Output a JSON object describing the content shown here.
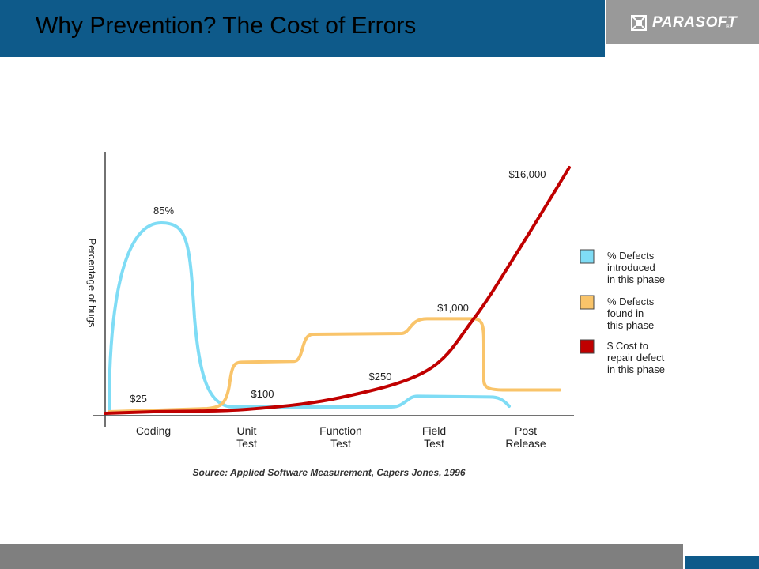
{
  "slide": {
    "title": "Why Prevention? The Cost of Errors",
    "logo": "PARASOFT",
    "logo_mark": "®",
    "colors": {
      "title_bar": "#0e5a8a",
      "logo_box": "#999999",
      "footer": "#7f7f7f"
    }
  },
  "chart_data": {
    "type": "line",
    "ylabel": "Percentage of bugs",
    "categories": [
      "Coding",
      "Unit\nTest",
      "Function\nTest",
      "Field\nTest",
      "Post\nRelease"
    ],
    "series": [
      {
        "name": "% Defects introduced in this phase",
        "color": "#7fdcf5",
        "values": [
          85,
          0.5,
          0.3,
          7,
          0
        ],
        "labels": [
          "85%"
        ]
      },
      {
        "name": "% Defects found in this phase",
        "color": "#f9c46a",
        "values": [
          0.5,
          16,
          25,
          30,
          7
        ]
      },
      {
        "name": "$ Cost to repair defect in this phase",
        "color": "#c00000",
        "values": [
          25,
          100,
          250,
          1000,
          16000
        ],
        "labels": [
          "$25",
          "$100",
          "$250",
          "$1,000",
          "$16,000"
        ]
      }
    ],
    "legend": [
      "% Defects\nintroduced\nin this phase",
      "% Defects\nfound in\nthis phase",
      "$ Cost to\nrepair defect\nin this phase"
    ],
    "legend_position": "right",
    "source": "Source: Applied Software Measurement, Capers Jones, 1996",
    "grid": false
  }
}
